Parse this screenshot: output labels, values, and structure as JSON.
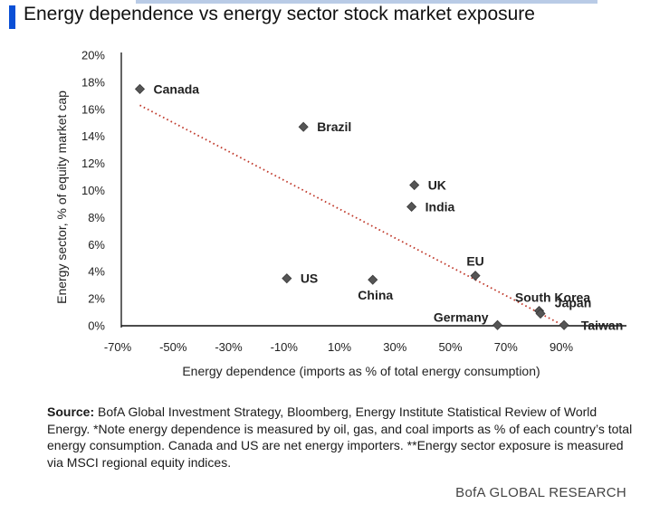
{
  "header": {
    "title": "Energy dependence vs energy sector stock market exposure"
  },
  "chart_data": {
    "type": "scatter",
    "xlabel": "Energy dependence (imports as % of total energy consumption)",
    "ylabel": "Energy sector, % of equity market cap",
    "xlim": [
      -70,
      90
    ],
    "ylim": [
      0,
      20
    ],
    "x_ticks": [
      -70,
      -50,
      -30,
      -10,
      10,
      30,
      50,
      70,
      90
    ],
    "x_tick_labels": [
      "-70%",
      "-50%",
      "-30%",
      "-10%",
      "10%",
      "30%",
      "50%",
      "70%",
      "90%"
    ],
    "y_ticks": [
      0,
      2,
      4,
      6,
      8,
      10,
      12,
      14,
      16,
      18,
      20
    ],
    "y_tick_labels": [
      "0%",
      "2%",
      "4%",
      "6%",
      "8%",
      "10%",
      "12%",
      "14%",
      "16%",
      "18%",
      "20%"
    ],
    "grid": false,
    "points": [
      {
        "label": "Canada",
        "x": -62,
        "y": 17.5
      },
      {
        "label": "Brazil",
        "x": -3,
        "y": 14.7
      },
      {
        "label": "UK",
        "x": 37,
        "y": 10.4
      },
      {
        "label": "India",
        "x": 36,
        "y": 8.8
      },
      {
        "label": "EU",
        "x": 59,
        "y": 3.7
      },
      {
        "label": "US",
        "x": -9,
        "y": 3.5
      },
      {
        "label": "China",
        "x": 22,
        "y": 3.4
      },
      {
        "label": "South Korea",
        "x": 82,
        "y": 1.1
      },
      {
        "label": "Japan",
        "x": 82.5,
        "y": 0.9
      },
      {
        "label": "Germany",
        "x": 67,
        "y": 0.05
      },
      {
        "label": "Taiwan",
        "x": 91,
        "y": 0.05
      }
    ],
    "trendline": {
      "style": "dotted",
      "color": "#c0392b",
      "x": [
        -62,
        90
      ],
      "y": [
        16.3,
        0.1
      ]
    },
    "marker_color": "#555555"
  },
  "footer": {
    "source_label": "Source:",
    "source_text": " BofA Global Investment Strategy, Bloomberg, Energy Institute Statistical Review of World Energy. *Note energy dependence is measured by oil, gas, and coal imports as % of each country’s total energy consumption. Canada and US are net energy importers. **Energy sector exposure is measured via MSCI regional equity indices.",
    "brand": "BofA GLOBAL RESEARCH"
  }
}
